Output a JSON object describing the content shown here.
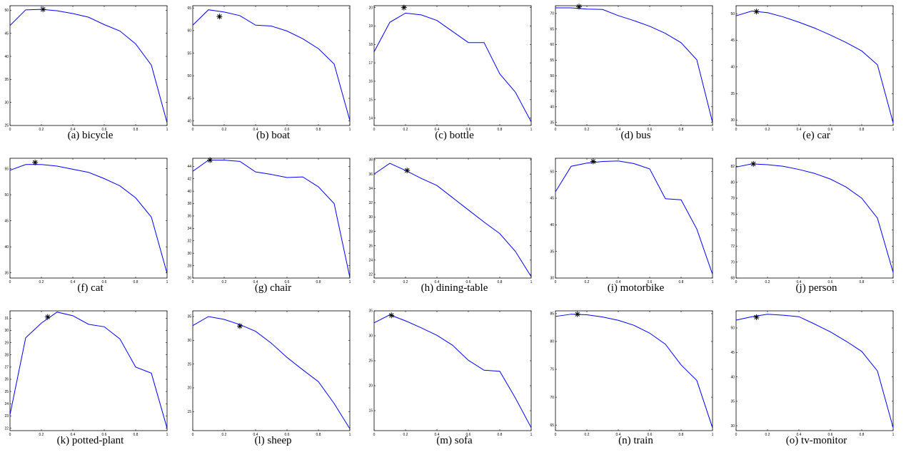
{
  "figure": {
    "colors": {
      "line": "#0000ff",
      "marker": "#000000",
      "axes": "#000000"
    }
  },
  "chart_data": [
    {
      "type": "line",
      "caption": "(a) bicycle",
      "xlim": [
        0,
        1
      ],
      "ylim": [
        25,
        51
      ],
      "x_ticks": [
        "0",
        "0.2",
        "0.4",
        "0.6",
        "0.8",
        "1"
      ],
      "y_ticks": [
        "25",
        "30",
        "35",
        "40",
        "45",
        "50"
      ],
      "series": [
        {
          "x": [
            0,
            0.1,
            0.2,
            0.3,
            0.4,
            0.5,
            0.6,
            0.7,
            0.8,
            0.9,
            1
          ],
          "y": [
            46.7,
            50.1,
            50.2,
            49.9,
            49.3,
            48.5,
            46.9,
            45.5,
            42.7,
            38.1,
            25.6
          ]
        }
      ],
      "marker": {
        "x": 0.21,
        "y": 50.2
      }
    },
    {
      "type": "line",
      "caption": "(b) boat",
      "xlim": [
        0,
        1
      ],
      "ylim": [
        39,
        65.5
      ],
      "x_ticks": [
        "0",
        "0.2",
        "0.4",
        "0.6",
        "0.8",
        "1"
      ],
      "y_ticks": [
        "40",
        "45",
        "50",
        "55",
        "60",
        "65"
      ],
      "series": [
        {
          "x": [
            0,
            0.1,
            0.2,
            0.3,
            0.4,
            0.5,
            0.6,
            0.7,
            0.8,
            0.9,
            1
          ],
          "y": [
            61.2,
            64.6,
            64.1,
            63.3,
            61.2,
            61.0,
            59.9,
            58.2,
            56.0,
            52.6,
            40.1
          ]
        }
      ],
      "marker": {
        "x": 0.17,
        "y": 63.1
      }
    },
    {
      "type": "line",
      "caption": "(c) bottle",
      "xlim": [
        0,
        1
      ],
      "ylim": [
        13.6,
        20.1
      ],
      "x_ticks": [
        "0",
        "0.2",
        "0.4",
        "0.6",
        "0.8",
        "1"
      ],
      "y_ticks": [
        "14",
        "15",
        "16",
        "17",
        "18",
        "19",
        "20"
      ],
      "series": [
        {
          "x": [
            0,
            0.1,
            0.2,
            0.3,
            0.4,
            0.5,
            0.6,
            0.7,
            0.8,
            0.9,
            1
          ],
          "y": [
            17.6,
            19.2,
            19.7,
            19.6,
            19.3,
            18.7,
            18.1,
            18.1,
            16.4,
            15.4,
            13.8
          ]
        }
      ],
      "marker": {
        "x": 0.19,
        "y": 20.0
      }
    },
    {
      "type": "line",
      "caption": "(d) bus",
      "xlim": [
        0,
        1
      ],
      "ylim": [
        34,
        72.5
      ],
      "x_ticks": [
        "0",
        "0.2",
        "0.4",
        "0.6",
        "0.8",
        "1"
      ],
      "y_ticks": [
        "35",
        "40",
        "45",
        "50",
        "55",
        "60",
        "65",
        "70"
      ],
      "series": [
        {
          "x": [
            0,
            0.1,
            0.2,
            0.3,
            0.4,
            0.5,
            0.6,
            0.7,
            0.8,
            0.9,
            1
          ],
          "y": [
            71.8,
            71.8,
            71.4,
            71.3,
            69.3,
            67.7,
            65.9,
            63.6,
            60.6,
            55.1,
            35.0
          ]
        }
      ],
      "marker": {
        "x": 0.15,
        "y": 72.2
      }
    },
    {
      "type": "line",
      "caption": "(e) car",
      "xlim": [
        0,
        1
      ],
      "ylim": [
        29,
        51.5
      ],
      "x_ticks": [
        "0",
        "0.2",
        "0.4",
        "0.6",
        "0.8",
        "1"
      ],
      "y_ticks": [
        "30",
        "35",
        "40",
        "45",
        "50"
      ],
      "series": [
        {
          "x": [
            0,
            0.1,
            0.2,
            0.3,
            0.4,
            0.5,
            0.6,
            0.7,
            0.8,
            0.9,
            1
          ],
          "y": [
            49.6,
            50.5,
            50.2,
            49.4,
            48.4,
            47.3,
            46.0,
            44.6,
            43.0,
            40.4,
            29.5
          ]
        }
      ],
      "marker": {
        "x": 0.13,
        "y": 50.4
      }
    },
    {
      "type": "line",
      "caption": "(f) cat",
      "xlim": [
        0,
        1
      ],
      "ylim": [
        34,
        57
      ],
      "x_ticks": [
        "0",
        "0.2",
        "0.4",
        "0.6",
        "0.8",
        "1"
      ],
      "y_ticks": [
        "35",
        "40",
        "45",
        "50",
        "55"
      ],
      "series": [
        {
          "x": [
            0,
            0.1,
            0.2,
            0.3,
            0.4,
            0.5,
            0.6,
            0.7,
            0.8,
            0.9,
            1
          ],
          "y": [
            54.7,
            55.8,
            55.8,
            55.5,
            54.9,
            54.3,
            53.1,
            51.7,
            49.4,
            45.7,
            34.9
          ]
        }
      ],
      "marker": {
        "x": 0.16,
        "y": 56.2
      }
    },
    {
      "type": "line",
      "caption": "(g) chair",
      "xlim": [
        0,
        1
      ],
      "ylim": [
        26,
        45.3
      ],
      "x_ticks": [
        "0",
        "0.2",
        "0.4",
        "0.6",
        "0.8",
        "1"
      ],
      "y_ticks": [
        "26",
        "28",
        "30",
        "32",
        "34",
        "36",
        "38",
        "40",
        "42",
        "44"
      ],
      "series": [
        {
          "x": [
            0,
            0.1,
            0.2,
            0.3,
            0.4,
            0.5,
            0.6,
            0.7,
            0.8,
            0.9,
            1
          ],
          "y": [
            43.2,
            45.0,
            45.0,
            44.8,
            43.1,
            42.7,
            42.2,
            42.3,
            40.7,
            38.0,
            26.1
          ]
        }
      ],
      "marker": {
        "x": 0.11,
        "y": 45.0
      }
    },
    {
      "type": "line",
      "caption": "(h) dining-table",
      "xlim": [
        0,
        1
      ],
      "ylim": [
        21.5,
        38.2
      ],
      "x_ticks": [
        "0",
        "0.2",
        "0.4",
        "0.6",
        "0.8",
        "1"
      ],
      "y_ticks": [
        "22",
        "24",
        "26",
        "28",
        "30",
        "32",
        "34",
        "36",
        "38"
      ],
      "series": [
        {
          "x": [
            0,
            0.1,
            0.2,
            0.3,
            0.4,
            0.5,
            0.6,
            0.7,
            0.8,
            0.9,
            1
          ],
          "y": [
            36.0,
            37.5,
            36.5,
            35.4,
            34.4,
            32.7,
            31.0,
            29.3,
            27.7,
            25.2,
            21.7
          ]
        }
      ],
      "marker": {
        "x": 0.21,
        "y": 36.5
      }
    },
    {
      "type": "line",
      "caption": "(i) motorbike",
      "xlim": [
        0,
        1
      ],
      "ylim": [
        30,
        52.5
      ],
      "x_ticks": [
        "0",
        "0.2",
        "0.4",
        "0.6",
        "0.8",
        "1"
      ],
      "y_ticks": [
        "30",
        "35",
        "40",
        "45",
        "50"
      ],
      "series": [
        {
          "x": [
            0,
            0.1,
            0.2,
            0.3,
            0.4,
            0.5,
            0.6,
            0.7,
            0.8,
            0.9,
            1
          ],
          "y": [
            46.2,
            51.0,
            51.6,
            51.9,
            52.0,
            51.5,
            50.5,
            44.9,
            44.7,
            39.2,
            30.7
          ]
        }
      ],
      "marker": {
        "x": 0.24,
        "y": 51.9
      }
    },
    {
      "type": "line",
      "caption": "(j) person",
      "xlim": [
        0,
        1
      ],
      "ylim": [
        68,
        83
      ],
      "x_ticks": [
        "0",
        "0.2",
        "0.4",
        "0.6",
        "0.8",
        "1"
      ],
      "y_ticks": [
        "68",
        "70",
        "72",
        "74",
        "76",
        "78",
        "80",
        "82"
      ],
      "series": [
        {
          "x": [
            0,
            0.1,
            0.2,
            0.3,
            0.4,
            0.5,
            0.6,
            0.7,
            0.8,
            0.9,
            1
          ],
          "y": [
            81.9,
            82.3,
            82.2,
            82.0,
            81.6,
            81.1,
            80.4,
            79.4,
            78.0,
            75.5,
            68.7
          ]
        }
      ],
      "marker": {
        "x": 0.11,
        "y": 82.3
      }
    },
    {
      "type": "line",
      "caption": "(k) potted-plant",
      "xlim": [
        0,
        1
      ],
      "ylim": [
        21.8,
        31.6
      ],
      "x_ticks": [
        "0",
        "0.2",
        "0.4",
        "0.6",
        "0.8",
        "1"
      ],
      "y_ticks": [
        "22",
        "23",
        "24",
        "25",
        "26",
        "27",
        "28",
        "29",
        "30",
        "31"
      ],
      "series": [
        {
          "x": [
            0,
            0.1,
            0.2,
            0.3,
            0.4,
            0.5,
            0.6,
            0.7,
            0.8,
            0.9,
            1
          ],
          "y": [
            23.1,
            29.4,
            30.6,
            31.5,
            31.2,
            30.5,
            30.3,
            29.3,
            27.0,
            26.5,
            22.0
          ]
        }
      ],
      "marker": {
        "x": 0.24,
        "y": 31.1
      }
    },
    {
      "type": "line",
      "caption": "(l) sheep",
      "xlim": [
        0,
        1
      ],
      "ylim": [
        11,
        36.2
      ],
      "x_ticks": [
        "0",
        "0.2",
        "0.4",
        "0.6",
        "0.8",
        "1"
      ],
      "y_ticks": [
        "15",
        "20",
        "25",
        "30",
        "35"
      ],
      "series": [
        {
          "x": [
            0,
            0.1,
            0.2,
            0.3,
            0.4,
            0.5,
            0.6,
            0.7,
            0.8,
            0.9,
            1
          ],
          "y": [
            33.1,
            35.0,
            34.4,
            33.3,
            31.9,
            29.4,
            26.4,
            23.8,
            21.3,
            16.7,
            11.4
          ]
        }
      ],
      "marker": {
        "x": 0.3,
        "y": 33.0
      }
    },
    {
      "type": "line",
      "caption": "(m) sofa",
      "xlim": [
        0,
        1
      ],
      "ylim": [
        11,
        35
      ],
      "x_ticks": [
        "0",
        "0.2",
        "0.4",
        "0.6",
        "0.8",
        "1"
      ],
      "y_ticks": [
        "15",
        "20",
        "25",
        "30",
        "35"
      ],
      "series": [
        {
          "x": [
            0,
            0.1,
            0.2,
            0.3,
            0.4,
            0.5,
            0.6,
            0.7,
            0.8,
            0.9,
            1
          ],
          "y": [
            32.6,
            34.2,
            33.0,
            31.6,
            30.1,
            28.1,
            25.1,
            23.1,
            22.9,
            17.5,
            11.6
          ]
        }
      ],
      "marker": {
        "x": 0.11,
        "y": 34.1
      }
    },
    {
      "type": "line",
      "caption": "(n) train",
      "xlim": [
        0,
        1
      ],
      "ylim": [
        64,
        85.5
      ],
      "x_ticks": [
        "0",
        "0.2",
        "0.4",
        "0.6",
        "0.8",
        "1"
      ],
      "y_ticks": [
        "65",
        "70",
        "75",
        "80",
        "85"
      ],
      "series": [
        {
          "x": [
            0,
            0.1,
            0.2,
            0.3,
            0.4,
            0.5,
            0.6,
            0.7,
            0.8,
            0.9,
            1
          ],
          "y": [
            84.5,
            84.9,
            84.8,
            84.4,
            83.8,
            82.9,
            81.5,
            79.5,
            75.8,
            73.0,
            64.5
          ]
        }
      ],
      "marker": {
        "x": 0.14,
        "y": 84.9
      }
    },
    {
      "type": "line",
      "caption": "(o) tv-monitor",
      "xlim": [
        0,
        1
      ],
      "ylim": [
        29,
        53.5
      ],
      "x_ticks": [
        "0",
        "0.2",
        "0.4",
        "0.6",
        "0.8",
        "1"
      ],
      "y_ticks": [
        "30",
        "35",
        "40",
        "45",
        "50"
      ],
      "series": [
        {
          "x": [
            0,
            0.1,
            0.2,
            0.3,
            0.4,
            0.5,
            0.6,
            0.7,
            0.8,
            0.9,
            1
          ],
          "y": [
            51.6,
            52.3,
            52.8,
            52.6,
            52.3,
            50.8,
            49.2,
            47.3,
            45.2,
            41.2,
            29.6
          ]
        }
      ],
      "marker": {
        "x": 0.13,
        "y": 52.2
      }
    }
  ]
}
